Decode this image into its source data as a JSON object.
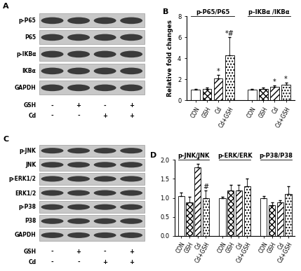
{
  "chart_data": [
    {
      "type": "bar",
      "panel": "B",
      "ylabel": "Relative fold changes",
      "categories": [
        "CON",
        "GSH",
        "Cd",
        "Cd+GSH"
      ],
      "ylim": [
        0,
        8
      ],
      "yticks": [
        0,
        2,
        4,
        6,
        8
      ],
      "groups": [
        {
          "name": "p-P65/P65",
          "values": [
            1.0,
            1.1,
            2.1,
            4.3
          ],
          "errors": [
            0.05,
            0.1,
            0.3,
            1.7
          ],
          "annotations": [
            null,
            null,
            "*",
            "*#"
          ]
        },
        {
          "name": "p-IKBα /IKBα",
          "values": [
            1.0,
            1.1,
            1.3,
            1.5
          ],
          "errors": [
            0.05,
            0.1,
            0.1,
            0.2
          ],
          "annotations": [
            null,
            null,
            "*",
            "*"
          ]
        }
      ]
    },
    {
      "type": "bar",
      "panel": "D",
      "categories": [
        "CON",
        "GSH",
        "Cd",
        "Cd+GSH"
      ],
      "ylim": [
        0,
        2.0
      ],
      "yticks": [
        {
          "value": 0,
          "label": "0.0"
        },
        {
          "value": 0.5,
          "label": "0.5"
        },
        {
          "value": 1.0,
          "label": "1.0"
        },
        {
          "value": 1.5,
          "label": "1.5"
        },
        {
          "value": 2.0,
          "label": "2.0"
        }
      ],
      "groups": [
        {
          "name": "p-JNK/JNK",
          "values": [
            1.05,
            0.88,
            1.8,
            1.0
          ],
          "errors": [
            0.08,
            0.15,
            0.1,
            0.2
          ],
          "annotations": [
            null,
            null,
            "*",
            "#"
          ]
        },
        {
          "name": "p-ERK/ERK",
          "values": [
            1.0,
            1.2,
            1.2,
            1.3
          ],
          "errors": [
            0.02,
            0.15,
            0.15,
            0.2
          ],
          "annotations": [
            null,
            null,
            null,
            null
          ]
        },
        {
          "name": "p-P38/P38",
          "values": [
            1.0,
            0.8,
            0.88,
            1.1
          ],
          "errors": [
            0.05,
            0.08,
            0.05,
            0.2
          ],
          "annotations": [
            null,
            null,
            null,
            null
          ]
        }
      ]
    }
  ],
  "blots": [
    {
      "panel": "A",
      "rows": [
        "p-P65",
        "P65",
        "p-IKBα",
        "IKBα",
        "GAPDH"
      ],
      "treatments": [
        {
          "name": "GSH",
          "lanes": [
            "-",
            "+",
            "-",
            "+"
          ]
        },
        {
          "name": "Cd",
          "lanes": [
            "-",
            "-",
            "+",
            "+"
          ]
        }
      ]
    },
    {
      "panel": "C",
      "rows": [
        "p-JNK",
        "JNK",
        "p-ERK1/2",
        "ERK1/2",
        "p-P38",
        "P38",
        "GAPDH"
      ],
      "treatments": [
        {
          "name": "GSH",
          "lanes": [
            "-",
            "+",
            "-",
            "+"
          ]
        },
        {
          "name": "Cd",
          "lanes": [
            "-",
            "-",
            "+",
            "+"
          ]
        }
      ]
    }
  ]
}
